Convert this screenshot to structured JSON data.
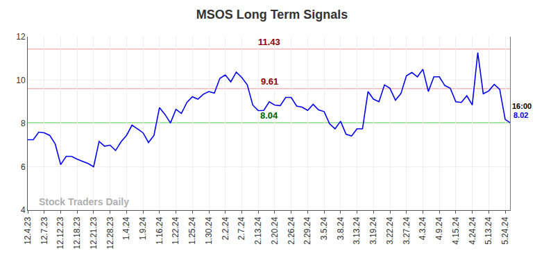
{
  "chart_data": {
    "type": "line",
    "title": "MSOS Long Term Signals",
    "color": "#0000ee",
    "grid": true,
    "ylim": [
      4,
      12
    ],
    "yticks": [
      4,
      6,
      8,
      10,
      12
    ],
    "categories": [
      "12.4.23",
      null,
      null,
      "12.7.23",
      null,
      null,
      "12.12.23",
      null,
      null,
      "12.18.23",
      null,
      null,
      "12.21.23",
      null,
      null,
      "12.28.23",
      null,
      null,
      "1.4.24",
      null,
      null,
      "1.9.24",
      null,
      null,
      "1.16.24",
      null,
      null,
      "1.22.24",
      null,
      null,
      "1.25.24",
      null,
      null,
      "1.30.24",
      null,
      null,
      "2.2.24",
      null,
      null,
      "2.7.24",
      null,
      null,
      "2.13.24",
      null,
      null,
      "2.20.24",
      null,
      null,
      "2.26.24",
      null,
      null,
      "2.29.24",
      null,
      null,
      "3.5.24",
      null,
      null,
      "3.8.24",
      null,
      null,
      "3.13.24",
      null,
      null,
      "3.19.24",
      null,
      null,
      "3.22.24",
      null,
      null,
      "3.27.24",
      null,
      null,
      "4.3.24",
      null,
      null,
      "4.9.24",
      null,
      null,
      "4.15.24",
      null,
      null,
      "4.24.24",
      null,
      null,
      "5.13.24",
      null,
      null,
      "5.24.24",
      null
    ],
    "values": [
      7.25,
      7.25,
      7.6,
      7.57,
      7.45,
      7.05,
      6.1,
      6.48,
      6.48,
      6.35,
      6.25,
      6.15,
      6.0,
      7.17,
      6.95,
      7.0,
      6.75,
      7.15,
      7.45,
      7.92,
      7.75,
      7.57,
      7.12,
      7.45,
      8.73,
      8.42,
      8.02,
      8.65,
      8.46,
      8.97,
      9.23,
      9.12,
      9.35,
      9.47,
      9.4,
      10.08,
      10.24,
      9.92,
      10.37,
      10.12,
      9.78,
      8.85,
      8.59,
      8.6,
      9.0,
      8.85,
      8.82,
      9.2,
      9.2,
      8.8,
      8.75,
      8.6,
      8.88,
      8.62,
      8.55,
      7.98,
      7.75,
      8.1,
      7.5,
      7.42,
      7.75,
      7.75,
      9.47,
      9.12,
      9.0,
      9.78,
      9.62,
      9.07,
      9.38,
      10.2,
      10.35,
      10.15,
      10.5,
      9.47,
      10.15,
      10.15,
      9.75,
      9.62,
      9.0,
      8.97,
      9.28,
      8.85,
      11.27,
      9.37,
      9.5,
      9.8,
      9.57,
      8.18,
      8.02
    ],
    "reference_lines": [
      {
        "value": 11.43,
        "color": "#f5b8b8",
        "label_color": "#8b0000"
      },
      {
        "value": 9.61,
        "color": "#f5b8b8",
        "label_color": "#8b0000"
      },
      {
        "value": 8.04,
        "color": "#90e090",
        "label_color": "#006400"
      }
    ],
    "last_time": "16:00",
    "watermark": "Stock Traders Daily"
  }
}
